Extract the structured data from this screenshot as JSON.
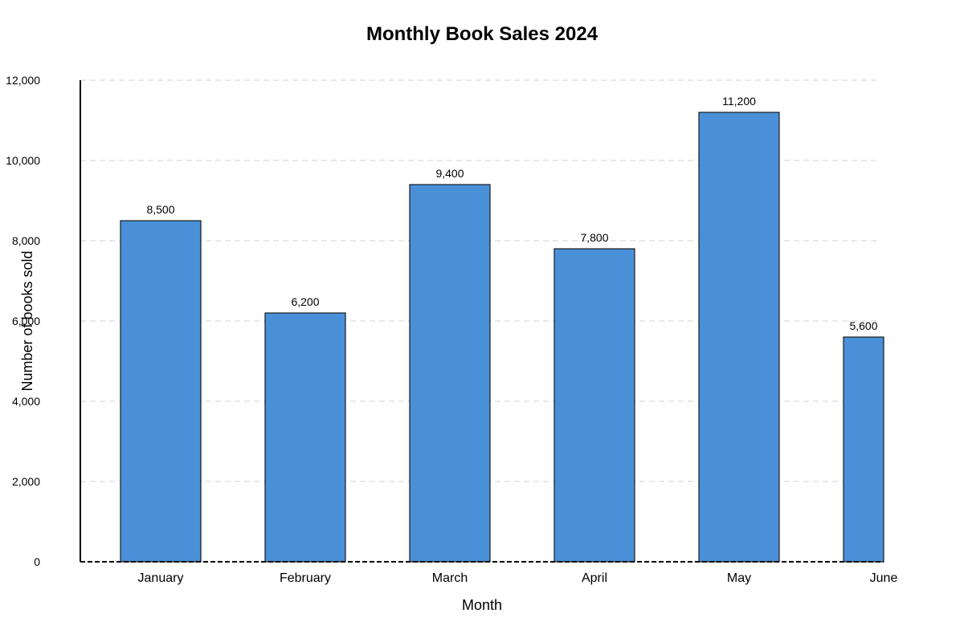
{
  "chart_data": {
    "type": "bar",
    "title": "Monthly Book Sales 2024",
    "xlabel": "Month",
    "ylabel": "Number of books sold",
    "categories": [
      "January",
      "February",
      "March",
      "April",
      "May",
      "June"
    ],
    "values": [
      8500,
      6200,
      9400,
      7800,
      11200,
      5600
    ],
    "value_labels": [
      "8,500",
      "6,200",
      "9,400",
      "7,800",
      "11,200",
      "5,600"
    ],
    "ylim": [
      0,
      12000
    ],
    "yticks": [
      0,
      2000,
      4000,
      6000,
      8000,
      10000,
      12000
    ],
    "ytick_labels": [
      "0",
      "2,000",
      "4,000",
      "6,000",
      "8,000",
      "10,000",
      "12,000"
    ],
    "grid": true,
    "colors": {
      "bar": "#4a90d9",
      "bar_edge": "#1a1a1a",
      "grid": "#d9d9d9"
    }
  }
}
